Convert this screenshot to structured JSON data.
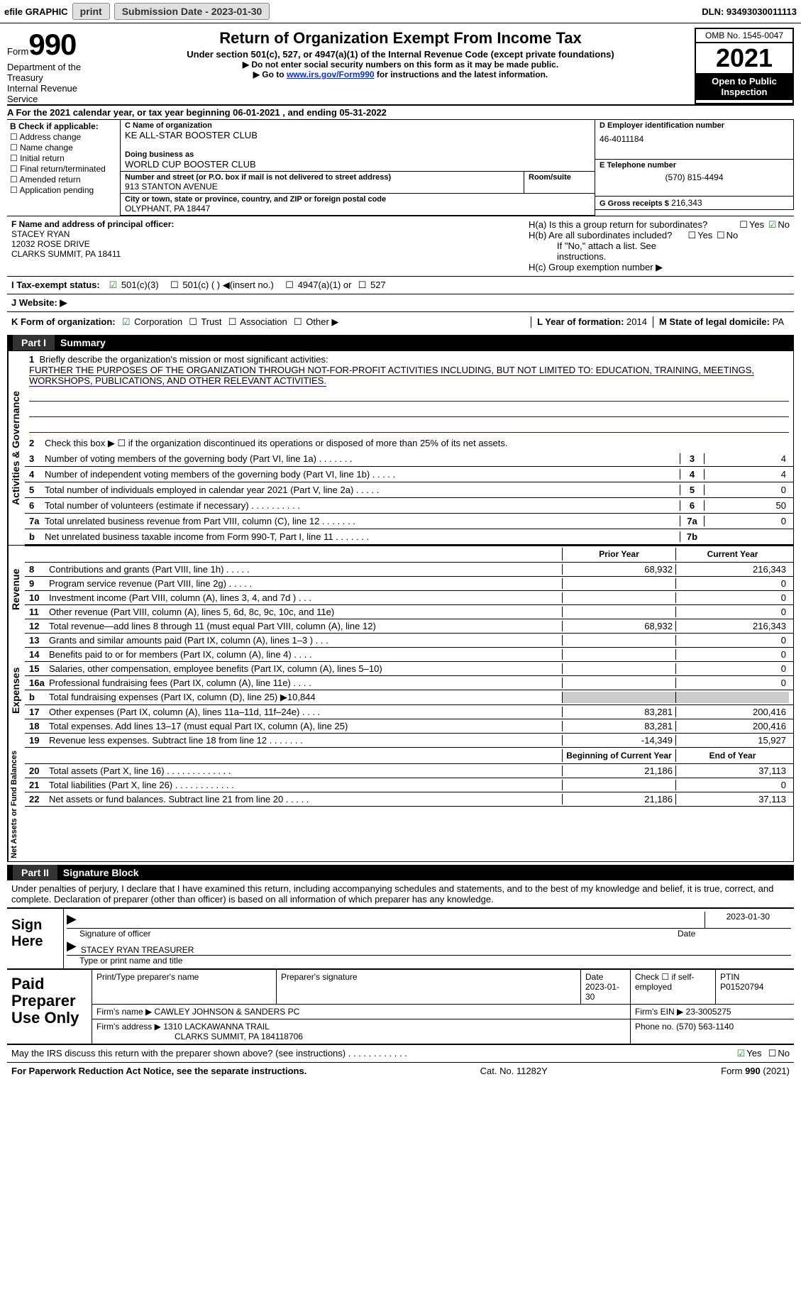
{
  "topbar": {
    "efile": "efile GRAPHIC",
    "print": "print",
    "sub_label": "Submission Date - 2023-01-30",
    "dln": "DLN: 93493030011113"
  },
  "header": {
    "form_label": "Form",
    "form_no": "990",
    "title": "Return of Organization Exempt From Income Tax",
    "subtitle": "Under section 501(c), 527, or 4947(a)(1) of the Internal Revenue Code (except private foundations)",
    "note1": "▶ Do not enter social security numbers on this form as it may be made public.",
    "note2_pre": "▶ Go to ",
    "note2_link": "www.irs.gov/Form990",
    "note2_post": " for instructions and the latest information.",
    "dept": "Department of the Treasury\nInternal Revenue Service",
    "omb": "OMB No. 1545-0047",
    "year": "2021",
    "open": "Open to Public Inspection"
  },
  "period": "A For the 2021 calendar year, or tax year beginning 06-01-2021    , and ending 05-31-2022",
  "b": {
    "label": "B Check if applicable:",
    "items": [
      "Address change",
      "Name change",
      "Initial return",
      "Final return/terminated",
      "Amended return",
      "Application pending"
    ]
  },
  "c": {
    "name_label": "C Name of organization",
    "name": "KE ALL-STAR BOOSTER CLUB",
    "dba_label": "Doing business as",
    "dba": "WORLD CUP BOOSTER CLUB",
    "addr_label": "Number and street (or P.O. box if mail is not delivered to street address)",
    "room_label": "Room/suite",
    "addr": "913 STANTON AVENUE",
    "city_label": "City or town, state or province, country, and ZIP or foreign postal code",
    "city": "OLYPHANT, PA   18447"
  },
  "d": {
    "label": "D Employer identification number",
    "val": "46-4011184"
  },
  "e": {
    "label": "E Telephone number",
    "val": "(570) 815-4494"
  },
  "g": {
    "label": "G Gross receipts $",
    "val": "216,343"
  },
  "f": {
    "label": "F Name and address of principal officer:",
    "name": "STACEY RYAN",
    "addr1": "12032 ROSE DRIVE",
    "addr2": "CLARKS SUMMIT, PA   18411"
  },
  "h": {
    "a": "H(a)  Is this a group return for subordinates?",
    "b": "H(b)  Are all subordinates included?",
    "bnote": "If \"No,\" attach a list. See instructions.",
    "c": "H(c)  Group exemption number ▶",
    "yes": "Yes",
    "no": "No"
  },
  "i": {
    "label": "I   Tax-exempt status:",
    "opts": [
      "501(c)(3)",
      "501(c) (   ) ◀(insert no.)",
      "4947(a)(1) or",
      "527"
    ]
  },
  "j": "J   Website: ▶",
  "k": {
    "label": "K Form of organization:",
    "opts": [
      "Corporation",
      "Trust",
      "Association",
      "Other ▶"
    ],
    "l_label": "L Year of formation:",
    "l_val": "2014",
    "m_label": "M State of legal domicile:",
    "m_val": "PA"
  },
  "part1": {
    "num": "Part I",
    "title": "Summary"
  },
  "mission": {
    "label": "Briefly describe the organization's mission or most significant activities:",
    "text": "FURTHER THE PURPOSES OF THE ORGANIZATION THROUGH NOT-FOR-PROFIT ACTIVITIES INCLUDING, BUT NOT LIMITED TO: EDUCATION, TRAINING, MEETINGS, WORKSHOPS, PUBLICATIONS, AND OTHER RELEVANT ACTIVITIES."
  },
  "gov": {
    "l2": "Check this box ▶ ☐  if the organization discontinued its operations or disposed of more than 25% of its net assets.",
    "rows": [
      {
        "n": "3",
        "t": "Number of voting members of the governing body (Part VI, line 1a)   .    .    .    .    .    .    .",
        "b": "3",
        "v": "4"
      },
      {
        "n": "4",
        "t": "Number of independent voting members of the governing body (Part VI, line 1b)   .    .    .    .    .",
        "b": "4",
        "v": "4"
      },
      {
        "n": "5",
        "t": "Total number of individuals employed in calendar year 2021 (Part V, line 2a)   .    .    .    .    .",
        "b": "5",
        "v": "0"
      },
      {
        "n": "6",
        "t": "Total number of volunteers (estimate if necessary)    .    .    .    .    .    .    .    .    .    .",
        "b": "6",
        "v": "50"
      },
      {
        "n": "7a",
        "t": "Total unrelated business revenue from Part VIII, column (C), line 12   .    .    .    .    .    .    .",
        "b": "7a",
        "v": "0"
      },
      {
        "n": "b",
        "t": "Net unrelated business taxable income from Form 990-T, Part I, line 11   .    .    .    .    .    .    .",
        "b": "7b",
        "v": ""
      }
    ],
    "vert": "Activities & Governance"
  },
  "cols": {
    "prior": "Prior Year",
    "current": "Current Year",
    "begin": "Beginning of Current Year",
    "end": "End of Year"
  },
  "rev": {
    "vert": "Revenue",
    "rows": [
      {
        "n": "8",
        "t": "Contributions and grants (Part VIII, line 1h)   .     .     .     .     .",
        "v1": "68,932",
        "v2": "216,343"
      },
      {
        "n": "9",
        "t": "Program service revenue (Part VIII, line 2g)    .    .    .    .    .",
        "v1": "",
        "v2": "0"
      },
      {
        "n": "10",
        "t": "Investment income (Part VIII, column (A), lines 3, 4, and 7d )   .    .    .",
        "v1": "",
        "v2": "0"
      },
      {
        "n": "11",
        "t": "Other revenue (Part VIII, column (A), lines 5, 6d, 8c, 9c, 10c, and 11e)",
        "v1": "",
        "v2": "0"
      },
      {
        "n": "12",
        "t": "Total revenue—add lines 8 through 11 (must equal Part VIII, column (A), line 12)",
        "v1": "68,932",
        "v2": "216,343"
      }
    ]
  },
  "exp": {
    "vert": "Expenses",
    "rows": [
      {
        "n": "13",
        "t": "Grants and similar amounts paid (Part IX, column (A), lines 1–3 )   .    .    .",
        "v1": "",
        "v2": "0"
      },
      {
        "n": "14",
        "t": "Benefits paid to or for members (Part IX, column (A), line 4)   .    .    .    .",
        "v1": "",
        "v2": "0"
      },
      {
        "n": "15",
        "t": "Salaries, other compensation, employee benefits (Part IX, column (A), lines 5–10)",
        "v1": "",
        "v2": "0"
      },
      {
        "n": "16a",
        "t": "Professional fundraising fees (Part IX, column (A), line 11e)   .    .    .    .",
        "v1": "",
        "v2": "0"
      },
      {
        "n": "b",
        "t": "Total fundraising expenses (Part IX, column (D), line 25) ▶10,844",
        "v1": "gray",
        "v2": "gray"
      },
      {
        "n": "17",
        "t": "Other expenses (Part IX, column (A), lines 11a–11d, 11f–24e)   .    .    .    .",
        "v1": "83,281",
        "v2": "200,416"
      },
      {
        "n": "18",
        "t": "Total expenses. Add lines 13–17 (must equal Part IX, column (A), line 25)",
        "v1": "83,281",
        "v2": "200,416"
      },
      {
        "n": "19",
        "t": "Revenue less expenses. Subtract line 18 from line 12   .    .    .    .    .    .    .",
        "v1": "-14,349",
        "v2": "15,927"
      }
    ]
  },
  "net": {
    "vert": "Net Assets or Fund Balances",
    "rows": [
      {
        "n": "20",
        "t": "Total assets (Part X, line 16)   .    .    .    .    .    .    .    .    .    .    .    .    .",
        "v1": "21,186",
        "v2": "37,113"
      },
      {
        "n": "21",
        "t": "Total liabilities (Part X, line 26)   .    .    .    .    .    .    .    .    .    .    .    .",
        "v1": "",
        "v2": "0"
      },
      {
        "n": "22",
        "t": "Net assets or fund balances. Subtract line 21 from line 20    .    .    .    .    .",
        "v1": "21,186",
        "v2": "37,113"
      }
    ]
  },
  "part2": {
    "num": "Part II",
    "title": "Signature Block"
  },
  "sig": {
    "perjury": "Under penalties of perjury, I declare that I have examined this return, including accompanying schedules and statements, and to the best of my knowledge and belief, it is true, correct, and complete. Declaration of preparer (other than officer) is based on all information of which preparer has any knowledge.",
    "sign_here": "Sign Here",
    "sig_of": "Signature of officer",
    "date": "Date",
    "date_val": "2023-01-30",
    "name_title": "STACEY RYAN  TREASURER",
    "type_name": "Type or print name and title"
  },
  "paid": {
    "label": "Paid Preparer Use Only",
    "print_label": "Print/Type preparer's name",
    "sig_label": "Preparer's signature",
    "date_label": "Date",
    "date_val": "2023-01-30",
    "check_label": "Check ☐ if self-employed",
    "ptin_label": "PTIN",
    "ptin": "P01520794",
    "firm_name_label": "Firm's name    ▶",
    "firm_name": "CAWLEY JOHNSON & SANDERS PC",
    "firm_ein_label": "Firm's EIN ▶",
    "firm_ein": "23-3005275",
    "firm_addr_label": "Firm's address ▶",
    "firm_addr1": "1310 LACKAWANNA TRAIL",
    "firm_addr2": "CLARKS SUMMIT, PA   184118706",
    "phone_label": "Phone no.",
    "phone": "(570) 563-1140"
  },
  "discuss": {
    "text": "May the IRS discuss this return with the preparer shown above? (see instructions)   .    .    .    .    .    .    .    .    .    .    .    .",
    "yes": "Yes",
    "no": "No"
  },
  "footer": {
    "left": "For Paperwork Reduction Act Notice, see the separate instructions.",
    "mid": "Cat. No. 11282Y",
    "right": "Form 990 (2021)"
  }
}
